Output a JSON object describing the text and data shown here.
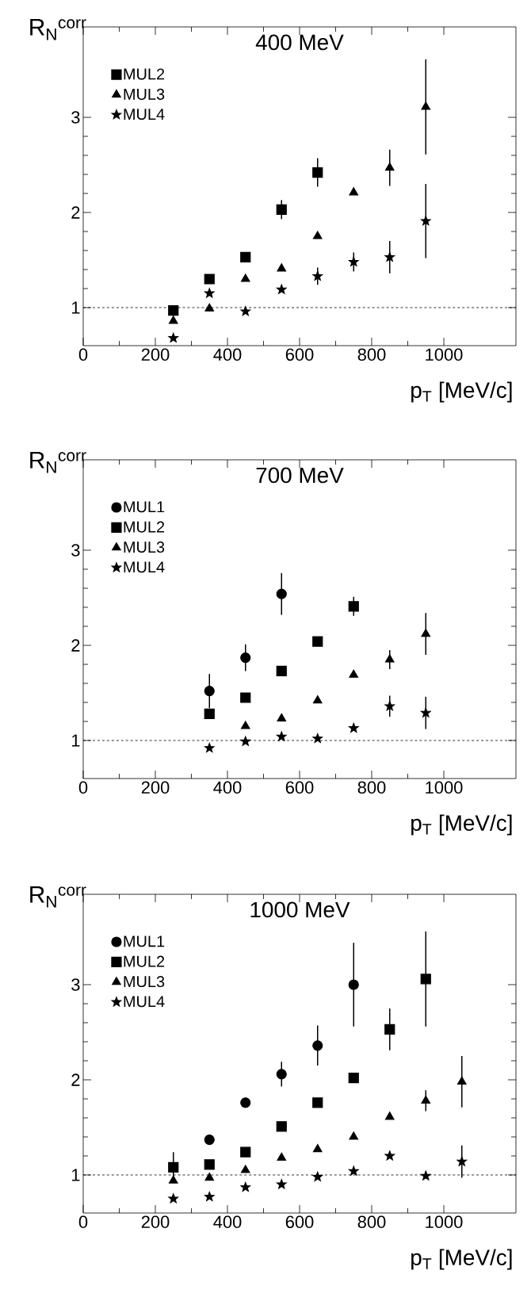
{
  "chart_data": [
    {
      "type": "scatter",
      "title": "400 MeV",
      "xlabel": "p$_{T}$ [MeV/c]",
      "ylabel": "R$_{N}$$^{corr}$",
      "xlim": [
        0,
        1200
      ],
      "ylim": [
        0.6,
        3.95
      ],
      "xticks": [
        0,
        200,
        400,
        600,
        800,
        1000
      ],
      "yticks": [
        1,
        2,
        3
      ],
      "legend": "top left",
      "ref_lines": [
        {
          "axis": "y",
          "value": 1,
          "line_style": "dashed",
          "color": "#000000"
        }
      ],
      "series": [
        {
          "name": "MUL2",
          "color": "#000000",
          "marker": "square",
          "x": [
            250,
            350,
            450,
            550,
            650
          ],
          "values": [
            0.97,
            1.3,
            1.53,
            2.03,
            2.42
          ],
          "errors": [
            null,
            null,
            null,
            0.1,
            0.15
          ]
        },
        {
          "name": "MUL3",
          "color": "#000000",
          "marker": "triangle",
          "x": [
            250,
            350,
            450,
            550,
            650,
            750,
            850,
            950
          ],
          "values": [
            0.86,
            0.99,
            1.3,
            1.41,
            1.75,
            2.21,
            2.47,
            3.11
          ],
          "errors": [
            null,
            null,
            null,
            null,
            null,
            null,
            0.19,
            0.5
          ]
        },
        {
          "name": "MUL4",
          "color": "#000000",
          "marker": "star",
          "x": [
            250,
            350,
            450,
            550,
            650,
            750,
            850,
            950
          ],
          "values": [
            0.68,
            1.15,
            0.96,
            1.19,
            1.33,
            1.48,
            1.53,
            1.91
          ],
          "errors": [
            null,
            null,
            null,
            null,
            0.09,
            0.1,
            0.17,
            0.39
          ]
        }
      ]
    },
    {
      "type": "scatter",
      "title": "700 MeV",
      "xlabel": "p$_{T}$ [MeV/c]",
      "ylabel": "R$_{N}$$^{corr}$",
      "xlim": [
        0,
        1200
      ],
      "ylim": [
        0.6,
        3.95
      ],
      "xticks": [
        0,
        200,
        400,
        600,
        800,
        1000
      ],
      "yticks": [
        1,
        2,
        3
      ],
      "legend": "top left",
      "ref_lines": [
        {
          "axis": "y",
          "value": 1,
          "line_style": "dashed",
          "color": "#000000"
        }
      ],
      "series": [
        {
          "name": "MUL1",
          "color": "#000000",
          "marker": "circle",
          "x": [
            350,
            450,
            550
          ],
          "values": [
            1.52,
            1.87,
            2.54
          ],
          "errors": [
            0.18,
            0.14,
            0.22
          ]
        },
        {
          "name": "MUL2",
          "color": "#000000",
          "marker": "square",
          "x": [
            350,
            450,
            550,
            650,
            750
          ],
          "values": [
            1.28,
            1.45,
            1.73,
            2.04,
            2.41
          ],
          "errors": [
            null,
            null,
            null,
            null,
            0.1
          ]
        },
        {
          "name": "MUL3",
          "color": "#000000",
          "marker": "triangle",
          "x": [
            450,
            550,
            650,
            750,
            850,
            950
          ],
          "values": [
            1.15,
            1.23,
            1.42,
            1.69,
            1.85,
            2.12
          ],
          "errors": [
            null,
            null,
            null,
            null,
            0.1,
            0.22
          ]
        },
        {
          "name": "MUL4",
          "color": "#000000",
          "marker": "star",
          "x": [
            350,
            450,
            550,
            650,
            750,
            850,
            950
          ],
          "values": [
            0.92,
            0.99,
            1.04,
            1.02,
            1.13,
            1.36,
            1.29
          ],
          "errors": [
            null,
            null,
            null,
            null,
            null,
            0.11,
            0.17
          ]
        }
      ]
    },
    {
      "type": "scatter",
      "title": "1000 MeV",
      "xlabel": "p$_{T}$ [MeV/c]",
      "ylabel": "R$_{N}$$^{corr}$",
      "xlim": [
        0,
        1200
      ],
      "ylim": [
        0.6,
        3.95
      ],
      "xticks": [
        0,
        200,
        400,
        600,
        800,
        1000
      ],
      "yticks": [
        1,
        2,
        3
      ],
      "legend": "top left",
      "ref_lines": [
        {
          "axis": "y",
          "value": 1,
          "line_style": "dashed",
          "color": "#000000"
        }
      ],
      "series": [
        {
          "name": "MUL1",
          "color": "#000000",
          "marker": "circle",
          "x": [
            350,
            450,
            550,
            650,
            750
          ],
          "values": [
            1.37,
            1.76,
            2.06,
            2.36,
            3.0
          ],
          "errors": [
            null,
            null,
            0.13,
            0.21,
            0.44
          ]
        },
        {
          "name": "MUL2",
          "color": "#000000",
          "marker": "square",
          "x": [
            250,
            350,
            450,
            550,
            650,
            750,
            850,
            950
          ],
          "values": [
            1.08,
            1.11,
            1.24,
            1.51,
            1.76,
            2.02,
            2.53,
            3.06
          ],
          "errors": [
            0.16,
            null,
            null,
            null,
            null,
            null,
            0.22,
            0.5
          ]
        },
        {
          "name": "MUL3",
          "color": "#000000",
          "marker": "triangle",
          "x": [
            250,
            350,
            450,
            550,
            650,
            750,
            850,
            950,
            1050
          ],
          "values": [
            0.94,
            0.97,
            1.05,
            1.18,
            1.27,
            1.4,
            1.61,
            1.78,
            1.98
          ],
          "errors": [
            null,
            null,
            null,
            null,
            null,
            null,
            null,
            0.11,
            0.27
          ]
        },
        {
          "name": "MUL4",
          "color": "#000000",
          "marker": "star",
          "x": [
            250,
            350,
            450,
            550,
            650,
            750,
            850,
            950,
            1050
          ],
          "values": [
            0.75,
            0.77,
            0.87,
            0.9,
            0.98,
            1.04,
            1.2,
            0.99,
            1.14
          ],
          "errors": [
            null,
            null,
            null,
            null,
            null,
            null,
            null,
            null,
            0.17
          ]
        }
      ]
    }
  ]
}
